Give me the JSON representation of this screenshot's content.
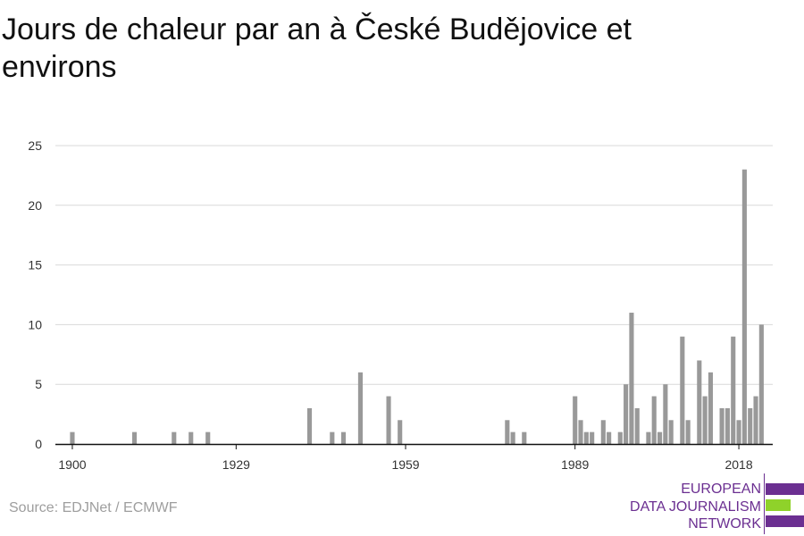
{
  "title": "Jours de chaleur par an à České Budějovice et environs",
  "source": "Source: EDJNet / ECMWF",
  "logo": {
    "lines": [
      "EUROPEAN",
      "DATA JOURNALISM",
      "NETWORK"
    ],
    "colors": {
      "purple": "#6b2f91",
      "green": "#8fd22a"
    }
  },
  "chart_data": {
    "type": "bar",
    "title": "Jours de chaleur par an à České Budějovice et environs",
    "xlabel": "",
    "ylabel": "",
    "xlim": [
      1897,
      2024
    ],
    "ylim": [
      0,
      25
    ],
    "xticks": [
      1900,
      1929,
      1959,
      1989,
      2018
    ],
    "yticks": [
      0,
      5,
      10,
      15,
      20,
      25
    ],
    "grid": true,
    "bar_color": "#999999",
    "x": [
      1900,
      1911,
      1918,
      1921,
      1924,
      1942,
      1946,
      1948,
      1951,
      1956,
      1958,
      1977,
      1978,
      1980,
      1989,
      1990,
      1991,
      1992,
      1994,
      1995,
      1997,
      1998,
      1999,
      2000,
      2002,
      2003,
      2004,
      2005,
      2006,
      2008,
      2009,
      2011,
      2012,
      2013,
      2015,
      2016,
      2017,
      2018,
      2019,
      2020,
      2021,
      2022
    ],
    "values": [
      1,
      1,
      1,
      1,
      1,
      3,
      1,
      1,
      6,
      4,
      2,
      2,
      1,
      1,
      4,
      2,
      1,
      1,
      2,
      1,
      1,
      5,
      11,
      3,
      1,
      4,
      1,
      5,
      2,
      9,
      2,
      7,
      4,
      6,
      3,
      3,
      9,
      2,
      23,
      3,
      4,
      10
    ]
  }
}
